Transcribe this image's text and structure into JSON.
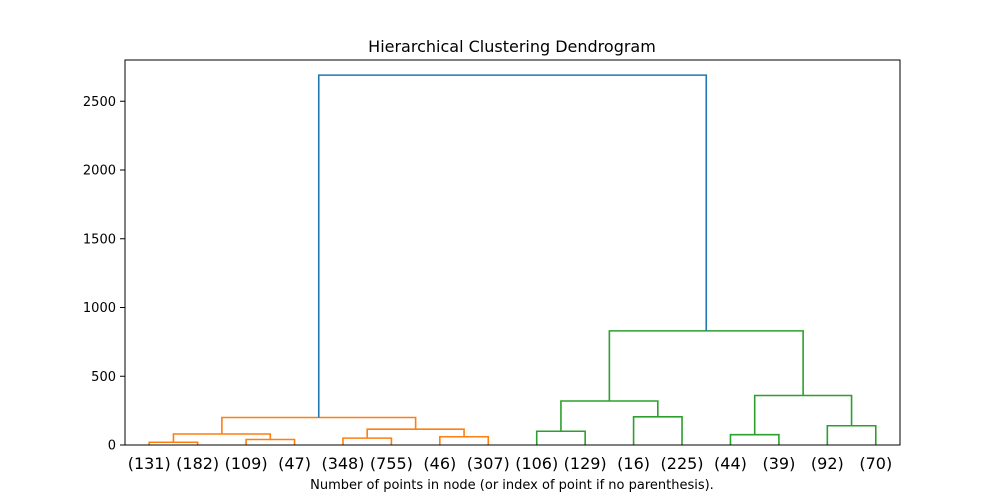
{
  "chart_data": {
    "type": "dendrogram",
    "title": "Hierarchical Clustering Dendrogram",
    "xlabel": "Number of points in node (or index of point if no parenthesis).",
    "ylabel": "",
    "ylim": [
      0,
      2800
    ],
    "yticks": [
      0,
      500,
      1000,
      1500,
      2000,
      2500
    ],
    "leaf_labels": [
      "(131)",
      "(182)",
      "(109)",
      "(47)",
      "(348)",
      "(755)",
      "(46)",
      "(307)",
      "(106)",
      "(129)",
      "(16)",
      "(225)",
      "(44)",
      "(39)",
      "(92)",
      "(70)"
    ],
    "links": [
      {
        "left": 0,
        "right": 1,
        "height": 20,
        "color": "orange",
        "left_height": 0,
        "right_height": 0
      },
      {
        "left": 2,
        "right": 3,
        "height": 40,
        "color": "orange",
        "left_height": 0,
        "right_height": 0
      },
      {
        "left": 0.5,
        "right": 2.5,
        "height": 80,
        "color": "orange",
        "left_height": 20,
        "right_height": 40
      },
      {
        "left": 4,
        "right": 5,
        "height": 50,
        "color": "orange",
        "left_height": 0,
        "right_height": 0
      },
      {
        "left": 6,
        "right": 7,
        "height": 60,
        "color": "orange",
        "left_height": 0,
        "right_height": 0
      },
      {
        "left": 4.5,
        "right": 6.5,
        "height": 115,
        "color": "orange",
        "left_height": 50,
        "right_height": 60
      },
      {
        "left": 1.5,
        "right": 5.5,
        "height": 200,
        "color": "orange",
        "left_height": 80,
        "right_height": 115
      },
      {
        "left": 8,
        "right": 9,
        "height": 100,
        "color": "green",
        "left_height": 0,
        "right_height": 0
      },
      {
        "left": 10,
        "right": 11,
        "height": 205,
        "color": "green",
        "left_height": 0,
        "right_height": 0
      },
      {
        "left": 8.5,
        "right": 10.5,
        "height": 320,
        "color": "green",
        "left_height": 100,
        "right_height": 205
      },
      {
        "left": 12,
        "right": 13,
        "height": 75,
        "color": "green",
        "left_height": 0,
        "right_height": 0
      },
      {
        "left": 14,
        "right": 15,
        "height": 140,
        "color": "green",
        "left_height": 0,
        "right_height": 0
      },
      {
        "left": 12.5,
        "right": 14.5,
        "height": 360,
        "color": "green",
        "left_height": 75,
        "right_height": 140
      },
      {
        "left": 9.5,
        "right": 13.5,
        "height": 830,
        "color": "green",
        "left_height": 320,
        "right_height": 360
      },
      {
        "left": 3.5,
        "right": 11.5,
        "height": 2690,
        "color": "blue",
        "left_height": 200,
        "right_height": 830
      }
    ],
    "colors": {
      "orange": "#ff7f0e",
      "green": "#2ca02c",
      "blue": "#1f77b4"
    }
  }
}
